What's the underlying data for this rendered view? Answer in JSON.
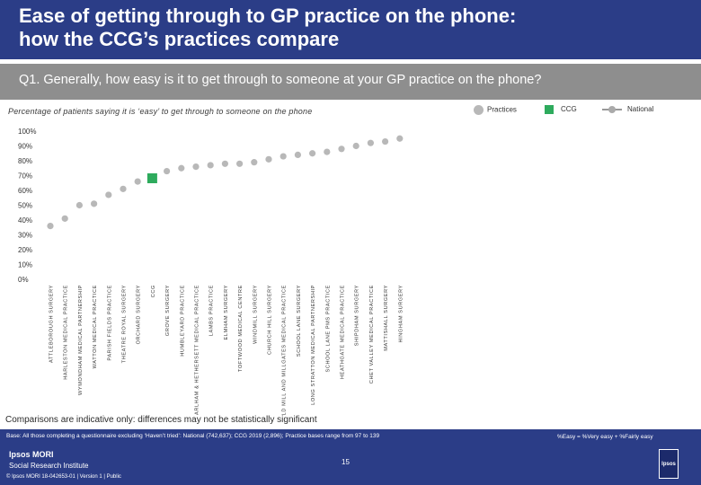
{
  "title_line1": "Ease of getting through to GP practice on the phone:",
  "title_line2": "how the CCG’s practices compare",
  "question": "Q1. Generally, how easy is it to get through to someone at your GP practice on the phone?",
  "subtitle": "Percentage of patients saying it is ‘easy’ to get through to someone on the phone",
  "legend": {
    "practices": "Practices",
    "ccg": "CCG",
    "national": "National"
  },
  "colors": {
    "header": "#2b3d87",
    "question_bar": "#8e8e8e",
    "practice_dot": "#b8b8b8",
    "ccg_marker": "#2eab5d",
    "national_line": "#999999"
  },
  "chart_data": {
    "type": "scatter",
    "ylim": [
      0,
      100
    ],
    "y_ticks": [
      "0%",
      "10%",
      "20%",
      "30%",
      "40%",
      "50%",
      "60%",
      "70%",
      "80%",
      "90%",
      "100%"
    ],
    "categories": [
      "ATTLEBOROUGH SURGERY",
      "HARLESTON MEDICAL PRACTICE",
      "WYMONDHAM MEDICAL PARTNERSHIP",
      "WATTON MEDICAL PRACTICE",
      "PARISH FIELDS PRACTICE",
      "THEATRE ROYAL SURGERY",
      "ORCHARD SURGERY",
      "CCG",
      "GROVE SURGERY",
      "HUMBLEYARD PRACTICE",
      "EARLHAM & HETHERSETT MEDICAL PRACTICE",
      "LAMBS PRACTICE",
      "ELMHAM SURGERY",
      "TOFTWOOD MEDICAL CENTRE",
      "WINDMILL SURGERY",
      "CHURCH HILL SURGERY",
      "OLD MILL AND MILLGATES MEDICAL PRACTICE",
      "SCHOOL LANE SURGERY",
      "LONG STRATTON MEDICAL PARTNERSHIP",
      "SCHOOL LANE PMS PRACTICE",
      "HEATHGATE MEDICAL PRACTICE",
      "SHIPDHAM SURGERY",
      "CHET VALLEY MEDICAL PRACTICE",
      "MATTISHALL SURGERY",
      "HINGHAM SURGERY"
    ],
    "series": [
      {
        "name": "Practices",
        "values": [
          36,
          41,
          50,
          51,
          57,
          61,
          66,
          null,
          73,
          75,
          76,
          77,
          78,
          78,
          79,
          81,
          83,
          84,
          85,
          86,
          88,
          90,
          92,
          93,
          95
        ]
      },
      {
        "name": "CCG",
        "values": [
          null,
          null,
          null,
          null,
          null,
          null,
          null,
          70,
          null,
          null,
          null,
          null,
          null,
          null,
          null,
          null,
          null,
          null,
          null,
          null,
          null,
          null,
          null,
          null,
          null
        ]
      }
    ]
  },
  "comparisons_note": "Comparisons are indicative only: differences may not be statistically significant",
  "base_note": "Base: All those completing a questionnaire excluding ‘Haven’t tried’: National (742,637); CCG 2019 (2,896); Practice bases range from 97 to 139",
  "easy_definition": "%Easy = %Very easy + %Fairly easy",
  "page_number": "15",
  "brand_line1": "Ipsos MORI",
  "brand_line2": "Social Research Institute",
  "copyright": "© Ipsos MORI    18-042653-01 | Version 1 | Public",
  "logo_text": "Ipsos"
}
